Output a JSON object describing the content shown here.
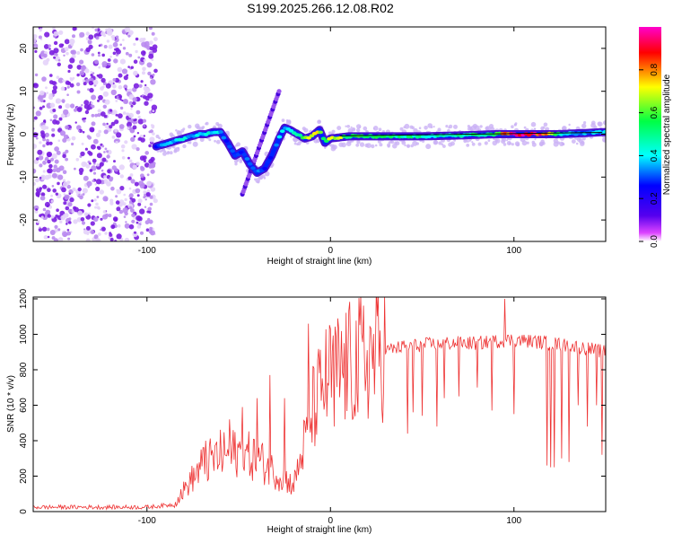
{
  "figure_title": "S199.2025.266.12.08.R02",
  "colors": {
    "snr_line": "#ee3333",
    "scatter_purple": "#7711dd",
    "colormap": [
      "#ffffff",
      "#dd44ff",
      "#5500ee",
      "#0000ff",
      "#00ffff",
      "#00ff44",
      "#ffff00",
      "#ff0000",
      "#ff00cc"
    ]
  },
  "chart_data": [
    {
      "type": "heatmap",
      "title": "",
      "xlabel": "Height of straight line (km)",
      "ylabel": "Frequency (Hz)",
      "xlim": [
        -162,
        150
      ],
      "ylim": [
        -25,
        25
      ],
      "xticks": [
        -100,
        0,
        100
      ],
      "yticks": [
        -20,
        -10,
        0,
        10,
        20
      ],
      "noise_region_x": [
        -162,
        -95
      ],
      "colorbar": {
        "label": "Normalized spectral amplitude",
        "range": [
          0,
          1
        ],
        "ticks": [
          "0.0",
          "0.2",
          "0.4",
          "0.6",
          "0.8"
        ]
      },
      "ridge_x": [
        -96,
        -92,
        -88,
        -84,
        -80,
        -76,
        -72,
        -68,
        -64,
        -60,
        -56,
        -52,
        -48,
        -44,
        -40,
        -36,
        -32,
        -28,
        -25,
        -22,
        -18,
        -14,
        -10,
        -6,
        -3,
        0,
        10,
        30,
        50,
        70,
        90,
        95,
        105,
        115,
        125,
        135,
        145,
        150
      ],
      "ridge_y": [
        -3,
        -2.5,
        -2,
        -1.5,
        -1,
        -0.5,
        0,
        0,
        0.5,
        0.5,
        -2,
        -5,
        -4,
        -7,
        -9,
        -8,
        -5,
        -1,
        1.5,
        1,
        0,
        -1,
        -0.5,
        1,
        -2,
        -1,
        -0.5,
        -0.5,
        -0.5,
        -0.3,
        0,
        0,
        0,
        0,
        0,
        0.2,
        0.4,
        0.5
      ],
      "ridge_amp": [
        0.3,
        0.35,
        0.4,
        0.4,
        0.45,
        0.4,
        0.45,
        0.45,
        0.45,
        0.4,
        0.3,
        0.3,
        0.3,
        0.35,
        0.35,
        0.3,
        0.3,
        0.4,
        0.4,
        0.45,
        0.5,
        0.65,
        0.8,
        0.7,
        0.5,
        0.8,
        0.6,
        0.55,
        0.5,
        0.5,
        0.55,
        0.95,
        1.0,
        0.95,
        0.45,
        0.35,
        0.4,
        0.4
      ],
      "streak_x": [
        -48,
        -28
      ],
      "streak_y": [
        -14,
        10
      ]
    },
    {
      "type": "line",
      "title": "",
      "xlabel": "Height of straight line (km)",
      "ylabel": "SNR (10 * v/v)",
      "xlim": [
        -162,
        150
      ],
      "ylim": [
        0,
        1210
      ],
      "xticks": [
        -100,
        0,
        100
      ],
      "yticks": [
        0,
        200,
        400,
        600,
        800,
        1000,
        1200
      ],
      "envelope_x": [
        -162,
        -130,
        -100,
        -85,
        -80,
        -70,
        -60,
        -50,
        -40,
        -30,
        -20,
        -15,
        -10,
        -5,
        0,
        10,
        20,
        30,
        40,
        60,
        80,
        100,
        120,
        140,
        150
      ],
      "envelope_y": [
        25,
        25,
        25,
        40,
        120,
        260,
        320,
        330,
        300,
        220,
        150,
        350,
        560,
        700,
        760,
        820,
        870,
        910,
        930,
        950,
        950,
        970,
        950,
        920,
        900
      ],
      "spike_x": [
        -68,
        -55,
        -48,
        -40,
        -33,
        -25,
        -12,
        -6,
        2,
        8,
        15,
        42,
        45,
        50,
        58,
        62,
        70,
        80,
        88,
        95,
        100,
        118,
        120,
        122,
        126,
        130,
        135,
        140,
        145,
        148,
        150
      ],
      "spike_y": [
        400,
        520,
        590,
        640,
        770,
        640,
        1060,
        780,
        480,
        520,
        560,
        440,
        560,
        540,
        480,
        640,
        650,
        700,
        570,
        1200,
        550,
        260,
        250,
        250,
        300,
        280,
        600,
        480,
        600,
        320,
        950
      ]
    }
  ]
}
